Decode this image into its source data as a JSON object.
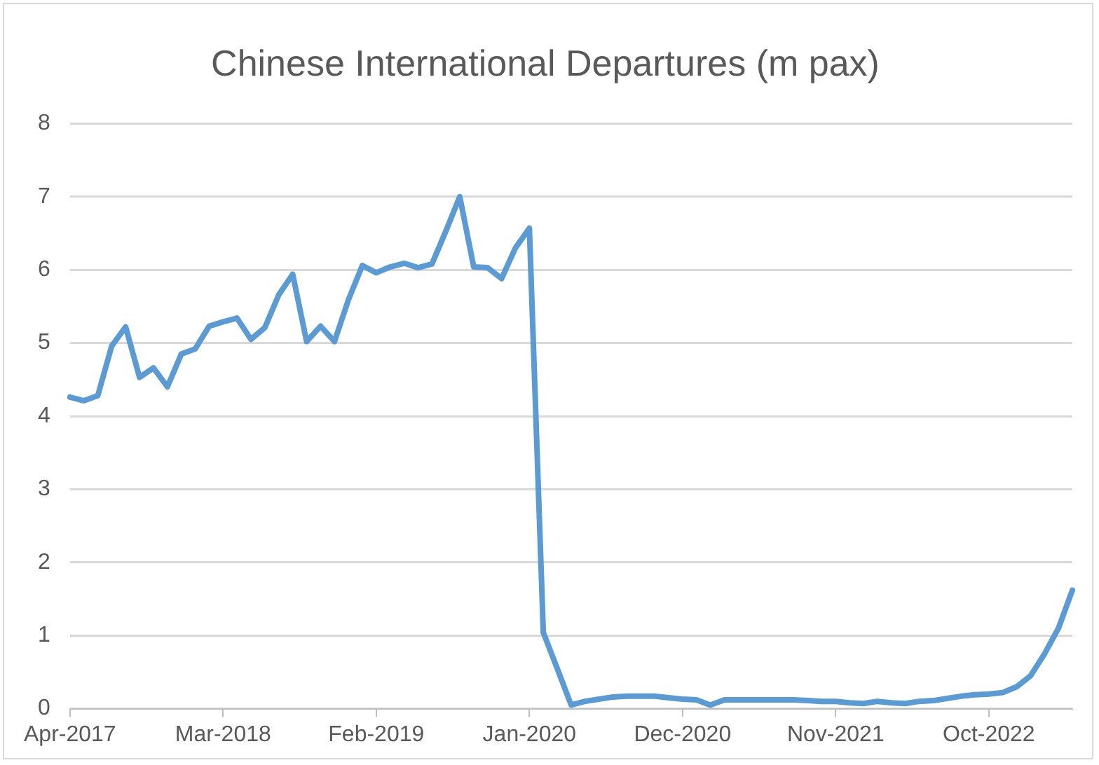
{
  "chart_data": {
    "type": "line",
    "title": "Chinese International Departures (m pax)",
    "categories": [
      "Apr-2017",
      null,
      null,
      null,
      null,
      null,
      null,
      null,
      null,
      null,
      null,
      "Mar-2018",
      null,
      null,
      null,
      null,
      null,
      null,
      null,
      null,
      null,
      null,
      "Feb-2019",
      null,
      null,
      null,
      null,
      null,
      null,
      null,
      null,
      null,
      null,
      "Jan-2020",
      null,
      null,
      null,
      null,
      null,
      null,
      null,
      null,
      null,
      null,
      "Dec-2020",
      null,
      null,
      null,
      null,
      null,
      null,
      null,
      null,
      null,
      null,
      "Nov-2021",
      null,
      null,
      null,
      null,
      null,
      null,
      null,
      null,
      null,
      null,
      "Oct-2022",
      null,
      null,
      null,
      null,
      null,
      null
    ],
    "series": [
      {
        "color": "#5b9bd5",
        "values": [
          4.26,
          4.21,
          4.28,
          4.96,
          5.22,
          4.53,
          4.66,
          4.4,
          4.85,
          4.92,
          5.23,
          5.29,
          5.34,
          5.05,
          5.21,
          5.66,
          5.94,
          5.02,
          5.23,
          5.02,
          5.59,
          6.06,
          5.96,
          6.04,
          6.09,
          6.03,
          6.08,
          6.53,
          7.0,
          6.04,
          6.03,
          5.88,
          6.3,
          6.57,
          1.04,
          0.55,
          0.05,
          0.1,
          0.13,
          0.16,
          0.17,
          0.17,
          0.17,
          0.15,
          0.13,
          0.12,
          0.05,
          0.12,
          0.12,
          0.12,
          0.12,
          0.12,
          0.12,
          0.11,
          0.1,
          0.1,
          0.08,
          0.07,
          0.1,
          0.08,
          0.07,
          0.1,
          0.11,
          0.14,
          0.17,
          0.19,
          0.2,
          0.22,
          0.3,
          0.45,
          0.75,
          1.1,
          1.62
        ]
      }
    ],
    "ylim": [
      0,
      8
    ],
    "yticks": [
      0,
      1,
      2,
      3,
      4,
      5,
      6,
      7,
      8
    ],
    "grid": "y",
    "legend": false,
    "marker": "none",
    "line_style": "solid"
  }
}
